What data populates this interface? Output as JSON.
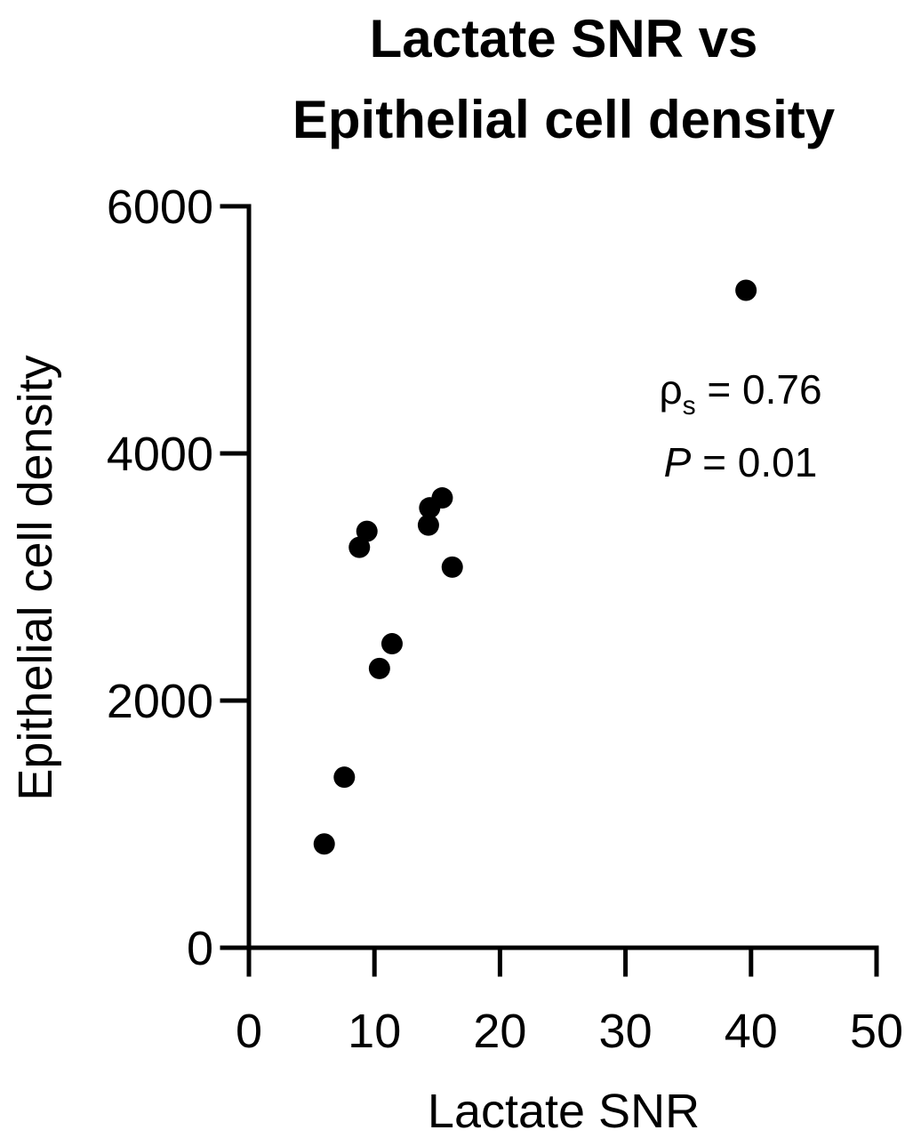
{
  "chart_data": {
    "type": "scatter",
    "title_lines": [
      "Lactate SNR vs",
      "Epithelial cell density"
    ],
    "xlabel": "Lactate SNR",
    "ylabel": "Epithelial cell density",
    "xlim": [
      0,
      50
    ],
    "ylim": [
      0,
      6000
    ],
    "xticks": [
      0,
      10,
      20,
      30,
      40,
      50
    ],
    "yticks": [
      0,
      2000,
      4000,
      6000
    ],
    "grid": false,
    "marker_color": "#000000",
    "points": [
      {
        "x": 6.0,
        "y": 840
      },
      {
        "x": 7.6,
        "y": 1380
      },
      {
        "x": 8.8,
        "y": 3240
      },
      {
        "x": 9.4,
        "y": 3370
      },
      {
        "x": 10.4,
        "y": 2260
      },
      {
        "x": 11.4,
        "y": 2460
      },
      {
        "x": 14.3,
        "y": 3420
      },
      {
        "x": 14.4,
        "y": 3560
      },
      {
        "x": 15.4,
        "y": 3640
      },
      {
        "x": 16.2,
        "y": 3080
      },
      {
        "x": 39.6,
        "y": 5320
      }
    ],
    "annotations": {
      "rho_symbol": "ρ",
      "rho_subscript": "s",
      "rho_text": " = 0.76",
      "p_symbol": "P",
      "p_text": " = 0.01"
    }
  }
}
